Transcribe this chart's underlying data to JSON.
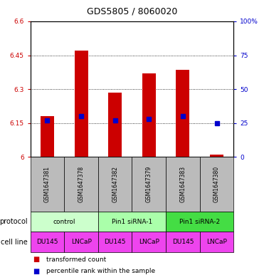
{
  "title": "GDS5805 / 8060020",
  "samples": [
    "GSM1647381",
    "GSM1647378",
    "GSM1647382",
    "GSM1647379",
    "GSM1647383",
    "GSM1647380"
  ],
  "red_values": [
    6.18,
    6.47,
    6.285,
    6.37,
    6.385,
    6.01
  ],
  "blue_values_pct": [
    27,
    30,
    27,
    28,
    30,
    25
  ],
  "ylim_left": [
    6.0,
    6.6
  ],
  "ylim_right": [
    0,
    100
  ],
  "yticks_left": [
    6.0,
    6.15,
    6.3,
    6.45,
    6.6
  ],
  "ytick_labels_left": [
    "6",
    "6.15",
    "6.3",
    "6.45",
    "6.6"
  ],
  "yticks_right": [
    0,
    25,
    50,
    75,
    100
  ],
  "ytick_labels_right": [
    "0",
    "25",
    "50",
    "75",
    "100%"
  ],
  "left_color": "#cc0000",
  "right_color": "#0000cc",
  "blue_dot_color": "#0000cc",
  "red_bar_color": "#cc0000",
  "bar_width": 0.4,
  "cell_lines": [
    "DU145",
    "LNCaP",
    "DU145",
    "LNCaP",
    "DU145",
    "LNCaP"
  ],
  "cell_line_color": "#ee44ee",
  "sample_bg_color": "#bbbbbb",
  "legend_red_label": "transformed count",
  "legend_blue_label": "percentile rank within the sample",
  "protocol_label": "protocol",
  "cell_line_label": "cell line",
  "protocol_groups": [
    {
      "label": "control",
      "start": 0,
      "end": 2,
      "color": "#ccffcc"
    },
    {
      "label": "Pin1 siRNA-1",
      "start": 2,
      "end": 4,
      "color": "#aaffaa"
    },
    {
      "label": "Pin1 siRNA-2",
      "start": 4,
      "end": 6,
      "color": "#44dd44"
    }
  ],
  "fig_width": 3.71,
  "fig_height": 3.93,
  "dpi": 100
}
